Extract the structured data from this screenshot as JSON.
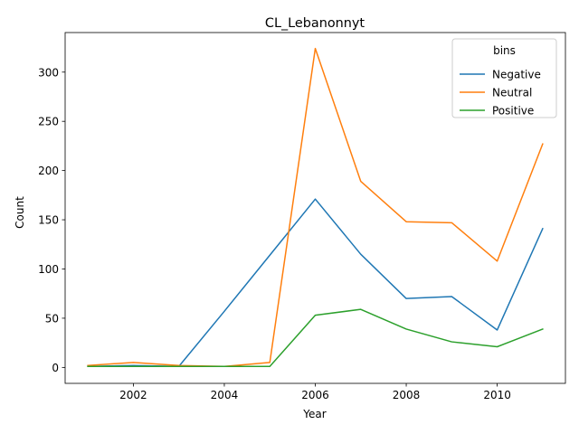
{
  "chart_data": {
    "type": "line",
    "title": "CL_Lebanonnyt",
    "xlabel": "Year",
    "ylabel": "Count",
    "x": [
      2001,
      2002,
      2003,
      2004,
      2005,
      2006,
      2007,
      2008,
      2009,
      2010,
      2011
    ],
    "xlim": [
      2000.5,
      2011.5
    ],
    "ylim": [
      -16.2,
      340.2
    ],
    "xticks": [
      2002,
      2004,
      2006,
      2008,
      2010
    ],
    "yticks": [
      0,
      50,
      100,
      150,
      200,
      250,
      300
    ],
    "grid": false,
    "legend": {
      "title": "bins",
      "position": "top-right"
    },
    "series": [
      {
        "name": "Negative",
        "color": "#1f77b4",
        "values": [
          1,
          2,
          1,
          57,
          114,
          171,
          115,
          70,
          72,
          38,
          141
        ]
      },
      {
        "name": "Neutral",
        "color": "#ff7f0e",
        "values": [
          2,
          5,
          2,
          1,
          5,
          324,
          189,
          148,
          147,
          108,
          227
        ]
      },
      {
        "name": "Positive",
        "color": "#2ca02c",
        "values": [
          1,
          1,
          1,
          1,
          1,
          53,
          59,
          39,
          26,
          21,
          39
        ]
      }
    ]
  }
}
